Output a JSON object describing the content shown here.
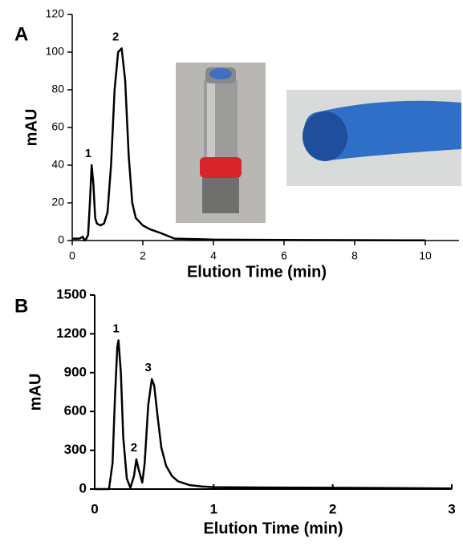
{
  "chart_data": [
    {
      "type": "line",
      "panel": "A",
      "x_label": "Elution Time (min)",
      "y_label": "mAU",
      "xlim": [
        0,
        10
      ],
      "xticks": [
        0,
        2,
        4,
        6,
        8,
        10
      ],
      "ylim": [
        0,
        120
      ],
      "yticks": [
        0,
        20,
        40,
        60,
        80,
        100,
        120
      ],
      "x": [
        0,
        0.2,
        0.3,
        0.35,
        0.4,
        0.45,
        0.5,
        0.55,
        0.6,
        0.65,
        0.7,
        0.8,
        0.9,
        1.0,
        1.1,
        1.2,
        1.3,
        1.4,
        1.5,
        1.6,
        1.7,
        1.8,
        2.0,
        2.2,
        2.5,
        2.9,
        4,
        6,
        8,
        10
      ],
      "series": [
        {
          "color": "#000000",
          "values": [
            1,
            1,
            2,
            0,
            1,
            3,
            20,
            40,
            30,
            12,
            9,
            8,
            9,
            15,
            40,
            80,
            100,
            102,
            85,
            45,
            20,
            12,
            8,
            6,
            4,
            1,
            0.5,
            0.3,
            0.2,
            0.1
          ]
        }
      ],
      "annotations": [
        {
          "text": "1",
          "x": 0.52,
          "y": 40
        },
        {
          "text": "2",
          "x": 1.3,
          "y": 102
        }
      ]
    },
    {
      "type": "line",
      "panel": "B",
      "x_label": "Elution Time (min)",
      "y_label": "mAU",
      "xlim": [
        0,
        3
      ],
      "xticks": [
        0,
        1,
        2,
        3
      ],
      "ylim": [
        0,
        1500
      ],
      "yticks": [
        0,
        300,
        600,
        900,
        1200,
        1500
      ],
      "x": [
        0,
        0.12,
        0.15,
        0.17,
        0.19,
        0.2,
        0.22,
        0.24,
        0.27,
        0.3,
        0.33,
        0.35,
        0.37,
        0.4,
        0.42,
        0.45,
        0.48,
        0.5,
        0.53,
        0.56,
        0.6,
        0.65,
        0.7,
        0.8,
        0.9,
        1.0,
        1.5,
        2,
        2.5,
        3
      ],
      "series": [
        {
          "color": "#000000",
          "values": [
            0,
            0,
            200,
            700,
            1100,
            1150,
            900,
            400,
            80,
            10,
            100,
            230,
            150,
            50,
            200,
            650,
            850,
            800,
            550,
            320,
            180,
            100,
            60,
            30,
            20,
            15,
            12,
            10,
            8,
            5
          ]
        }
      ],
      "annotations": [
        {
          "text": "1",
          "x": 0.2,
          "y": 1150
        },
        {
          "text": "2",
          "x": 0.35,
          "y": 230
        },
        {
          "text": "3",
          "x": 0.47,
          "y": 850
        }
      ]
    }
  ]
}
